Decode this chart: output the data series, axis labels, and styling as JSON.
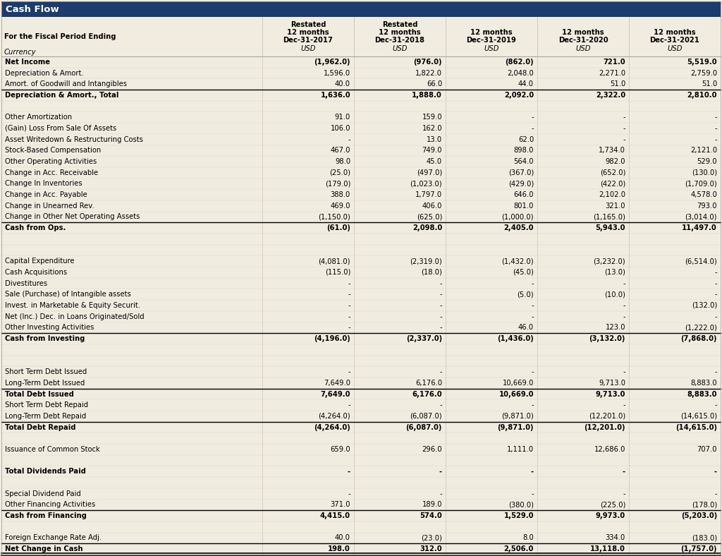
{
  "title": "Cash Flow",
  "title_bg": "#1c3b6e",
  "title_color": "#ffffff",
  "bg_color": "#f0ece0",
  "subheader1": "For the Fiscal Period Ending",
  "subheader2": "Currency",
  "col_headers": [
    {
      "lines": [
        "Restated",
        "12 months",
        "Dec-31-2017",
        "USD"
      ],
      "restated": true
    },
    {
      "lines": [
        "Restated",
        "12 months",
        "Dec-31-2018",
        "USD"
      ],
      "restated": true
    },
    {
      "lines": [
        "12 months",
        "Dec-31-2019",
        "USD"
      ],
      "restated": false
    },
    {
      "lines": [
        "12 months",
        "Dec-31-2020",
        "USD"
      ],
      "restated": false
    },
    {
      "lines": [
        "12 months",
        "Dec-31-2021",
        "USD"
      ],
      "restated": false
    }
  ],
  "rows": [
    {
      "label": "Net Income",
      "bold": true,
      "top_border": false,
      "bottom_border": false,
      "double_bottom": false,
      "values": [
        "(1,962.0)",
        "(976.0)",
        "(862.0)",
        "721.0",
        "5,519.0"
      ]
    },
    {
      "label": "Depreciation & Amort.",
      "bold": false,
      "top_border": false,
      "bottom_border": false,
      "double_bottom": false,
      "values": [
        "1,596.0",
        "1,822.0",
        "2,048.0",
        "2,271.0",
        "2,759.0"
      ]
    },
    {
      "label": "Amort. of Goodwill and Intangibles",
      "bold": false,
      "top_border": false,
      "bottom_border": false,
      "double_bottom": false,
      "values": [
        "40.0",
        "66.0",
        "44.0",
        "51.0",
        "51.0"
      ]
    },
    {
      "label": "Depreciation & Amort., Total",
      "bold": true,
      "top_border": true,
      "bottom_border": false,
      "double_bottom": false,
      "values": [
        "1,636.0",
        "1,888.0",
        "2,092.0",
        "2,322.0",
        "2,810.0"
      ]
    },
    {
      "label": "",
      "bold": false,
      "top_border": false,
      "bottom_border": false,
      "double_bottom": false,
      "values": [
        "",
        "",
        "",
        "",
        ""
      ]
    },
    {
      "label": "Other Amortization",
      "bold": false,
      "top_border": false,
      "bottom_border": false,
      "double_bottom": false,
      "values": [
        "91.0",
        "159.0",
        "-",
        "-",
        "-"
      ]
    },
    {
      "label": "(Gain) Loss From Sale Of Assets",
      "bold": false,
      "top_border": false,
      "bottom_border": false,
      "double_bottom": false,
      "values": [
        "106.0",
        "162.0",
        "-",
        "-",
        "-"
      ]
    },
    {
      "label": "Asset Writedown & Restructuring Costs",
      "bold": false,
      "top_border": false,
      "bottom_border": false,
      "double_bottom": false,
      "values": [
        "-",
        "13.0",
        "62.0",
        "-",
        "-"
      ]
    },
    {
      "label": "Stock-Based Compensation",
      "bold": false,
      "top_border": false,
      "bottom_border": false,
      "double_bottom": false,
      "values": [
        "467.0",
        "749.0",
        "898.0",
        "1,734.0",
        "2,121.0"
      ]
    },
    {
      "label": "Other Operating Activities",
      "bold": false,
      "top_border": false,
      "bottom_border": false,
      "double_bottom": false,
      "values": [
        "98.0",
        "45.0",
        "564.0",
        "982.0",
        "529.0"
      ]
    },
    {
      "label": "Change in Acc. Receivable",
      "bold": false,
      "top_border": false,
      "bottom_border": false,
      "double_bottom": false,
      "values": [
        "(25.0)",
        "(497.0)",
        "(367.0)",
        "(652.0)",
        "(130.0)"
      ]
    },
    {
      "label": "Change In Inventories",
      "bold": false,
      "top_border": false,
      "bottom_border": false,
      "double_bottom": false,
      "values": [
        "(179.0)",
        "(1,023.0)",
        "(429.0)",
        "(422.0)",
        "(1,709.0)"
      ]
    },
    {
      "label": "Change in Acc. Payable",
      "bold": false,
      "top_border": false,
      "bottom_border": false,
      "double_bottom": false,
      "values": [
        "388.0",
        "1,797.0",
        "646.0",
        "2,102.0",
        "4,578.0"
      ]
    },
    {
      "label": "Change in Unearned Rev.",
      "bold": false,
      "top_border": false,
      "bottom_border": false,
      "double_bottom": false,
      "values": [
        "469.0",
        "406.0",
        "801.0",
        "321.0",
        "793.0"
      ]
    },
    {
      "label": "Change in Other Net Operating Assets",
      "bold": false,
      "top_border": false,
      "bottom_border": false,
      "double_bottom": false,
      "values": [
        "(1,150.0)",
        "(625.0)",
        "(1,000.0)",
        "(1,165.0)",
        "(3,014.0)"
      ]
    },
    {
      "label": "Cash from Ops.",
      "bold": true,
      "top_border": true,
      "bottom_border": false,
      "double_bottom": false,
      "values": [
        "(61.0)",
        "2,098.0",
        "2,405.0",
        "5,943.0",
        "11,497.0"
      ]
    },
    {
      "label": "",
      "bold": false,
      "top_border": false,
      "bottom_border": false,
      "double_bottom": false,
      "values": [
        "",
        "",
        "",
        "",
        ""
      ]
    },
    {
      "label": "",
      "bold": false,
      "top_border": false,
      "bottom_border": false,
      "double_bottom": false,
      "values": [
        "",
        "",
        "",
        "",
        ""
      ]
    },
    {
      "label": "Capital Expenditure",
      "bold": false,
      "top_border": false,
      "bottom_border": false,
      "double_bottom": false,
      "values": [
        "(4,081.0)",
        "(2,319.0)",
        "(1,432.0)",
        "(3,232.0)",
        "(6,514.0)"
      ]
    },
    {
      "label": "Cash Acquisitions",
      "bold": false,
      "top_border": false,
      "bottom_border": false,
      "double_bottom": false,
      "values": [
        "(115.0)",
        "(18.0)",
        "(45.0)",
        "(13.0)",
        "-"
      ]
    },
    {
      "label": "Divestitures",
      "bold": false,
      "top_border": false,
      "bottom_border": false,
      "double_bottom": false,
      "values": [
        "-",
        "-",
        "-",
        "-",
        "-"
      ]
    },
    {
      "label": "Sale (Purchase) of Intangible assets",
      "bold": false,
      "top_border": false,
      "bottom_border": false,
      "double_bottom": false,
      "values": [
        "-",
        "-",
        "(5.0)",
        "(10.0)",
        "-"
      ]
    },
    {
      "label": "Invest. in Marketable & Equity Securit.",
      "bold": false,
      "top_border": false,
      "bottom_border": false,
      "double_bottom": false,
      "values": [
        "-",
        "-",
        "-",
        "-",
        "(132.0)"
      ]
    },
    {
      "label": "Net (Inc.) Dec. in Loans Originated/Sold",
      "bold": false,
      "top_border": false,
      "bottom_border": false,
      "double_bottom": false,
      "values": [
        "-",
        "-",
        "-",
        "-",
        "-"
      ]
    },
    {
      "label": "Other Investing Activities",
      "bold": false,
      "top_border": false,
      "bottom_border": false,
      "double_bottom": false,
      "values": [
        "-",
        "-",
        "46.0",
        "123.0",
        "(1,222.0)"
      ]
    },
    {
      "label": "Cash from Investing",
      "bold": true,
      "top_border": true,
      "bottom_border": false,
      "double_bottom": false,
      "values": [
        "(4,196.0)",
        "(2,337.0)",
        "(1,436.0)",
        "(3,132.0)",
        "(7,868.0)"
      ]
    },
    {
      "label": "",
      "bold": false,
      "top_border": false,
      "bottom_border": false,
      "double_bottom": false,
      "values": [
        "",
        "",
        "",
        "",
        ""
      ]
    },
    {
      "label": "",
      "bold": false,
      "top_border": false,
      "bottom_border": false,
      "double_bottom": false,
      "values": [
        "",
        "",
        "",
        "",
        ""
      ]
    },
    {
      "label": "Short Term Debt Issued",
      "bold": false,
      "top_border": false,
      "bottom_border": false,
      "double_bottom": false,
      "values": [
        "-",
        "-",
        "-",
        "-",
        "-"
      ]
    },
    {
      "label": "Long-Term Debt Issued",
      "bold": false,
      "top_border": false,
      "bottom_border": false,
      "double_bottom": false,
      "values": [
        "7,649.0",
        "6,176.0",
        "10,669.0",
        "9,713.0",
        "8,883.0"
      ]
    },
    {
      "label": "Total Debt Issued",
      "bold": true,
      "top_border": true,
      "bottom_border": false,
      "double_bottom": false,
      "values": [
        "7,649.0",
        "6,176.0",
        "10,669.0",
        "9,713.0",
        "8,883.0"
      ]
    },
    {
      "label": "Short Term Debt Repaid",
      "bold": false,
      "top_border": false,
      "bottom_border": false,
      "double_bottom": false,
      "values": [
        "-",
        "-",
        "-",
        "-",
        "-"
      ]
    },
    {
      "label": "Long-Term Debt Repaid",
      "bold": false,
      "top_border": false,
      "bottom_border": false,
      "double_bottom": false,
      "values": [
        "(4,264.0)",
        "(6,087.0)",
        "(9,871.0)",
        "(12,201.0)",
        "(14,615.0)"
      ]
    },
    {
      "label": "Total Debt Repaid",
      "bold": true,
      "top_border": true,
      "bottom_border": false,
      "double_bottom": false,
      "values": [
        "(4,264.0)",
        "(6,087.0)",
        "(9,871.0)",
        "(12,201.0)",
        "(14,615.0)"
      ]
    },
    {
      "label": "",
      "bold": false,
      "top_border": false,
      "bottom_border": false,
      "double_bottom": false,
      "values": [
        "",
        "",
        "",
        "",
        ""
      ]
    },
    {
      "label": "Issuance of Common Stock",
      "bold": false,
      "top_border": false,
      "bottom_border": false,
      "double_bottom": false,
      "values": [
        "659.0",
        "296.0",
        "1,111.0",
        "12,686.0",
        "707.0"
      ]
    },
    {
      "label": "",
      "bold": false,
      "top_border": false,
      "bottom_border": false,
      "double_bottom": false,
      "values": [
        "",
        "",
        "",
        "",
        ""
      ]
    },
    {
      "label": "Total Dividends Paid",
      "bold": true,
      "top_border": false,
      "bottom_border": false,
      "double_bottom": false,
      "values": [
        "-",
        "-",
        "-",
        "-",
        "-"
      ]
    },
    {
      "label": "",
      "bold": false,
      "top_border": false,
      "bottom_border": false,
      "double_bottom": false,
      "values": [
        "",
        "",
        "",
        "",
        ""
      ]
    },
    {
      "label": "Special Dividend Paid",
      "bold": false,
      "top_border": false,
      "bottom_border": false,
      "double_bottom": false,
      "values": [
        "-",
        "-",
        "-",
        "-",
        "-"
      ]
    },
    {
      "label": "Other Financing Activities",
      "bold": false,
      "top_border": false,
      "bottom_border": false,
      "double_bottom": false,
      "values": [
        "371.0",
        "189.0",
        "(380.0)",
        "(225.0)",
        "(178.0)"
      ]
    },
    {
      "label": "Cash from Financing",
      "bold": true,
      "top_border": true,
      "bottom_border": false,
      "double_bottom": false,
      "values": [
        "4,415.0",
        "574.0",
        "1,529.0",
        "9,973.0",
        "(5,203.0)"
      ]
    },
    {
      "label": "",
      "bold": false,
      "top_border": false,
      "bottom_border": false,
      "double_bottom": false,
      "values": [
        "",
        "",
        "",
        "",
        ""
      ]
    },
    {
      "label": "Foreign Exchange Rate Adj.",
      "bold": false,
      "top_border": false,
      "bottom_border": false,
      "double_bottom": false,
      "values": [
        "40.0",
        "(23.0)",
        "8.0",
        "334.0",
        "(183.0)"
      ]
    },
    {
      "label": "Net Change in Cash",
      "bold": true,
      "top_border": true,
      "bottom_border": false,
      "double_bottom": true,
      "values": [
        "198.0",
        "312.0",
        "2,506.0",
        "13,118.0",
        "(1,757.0)"
      ]
    }
  ],
  "font_size": 7.2,
  "title_font_size": 9.5,
  "header_font_size": 7.2
}
